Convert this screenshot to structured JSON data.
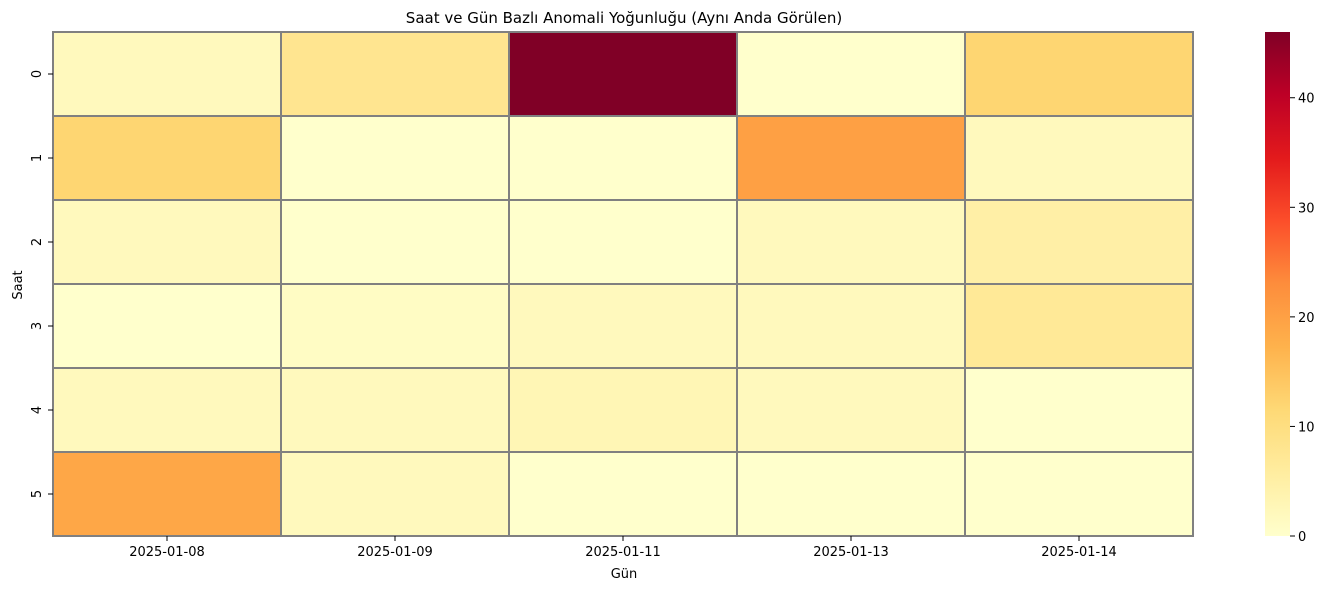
{
  "chart_data": {
    "type": "heatmap",
    "title": "Saat ve Gün Bazlı Anomali Yoğunluğu (Aynı Anda Görülen)",
    "xlabel": "Gün",
    "ylabel": "Saat",
    "x_categories": [
      "2025-01-08",
      "2025-01-09",
      "2025-01-11",
      "2025-01-13",
      "2025-01-14"
    ],
    "y_categories": [
      "0",
      "1",
      "2",
      "3",
      "4",
      "5"
    ],
    "values": [
      [
        2,
        8,
        46,
        0,
        12
      ],
      [
        12,
        0,
        0,
        20,
        2
      ],
      [
        2,
        0,
        0,
        2,
        5
      ],
      [
        0,
        1,
        2,
        2,
        7
      ],
      [
        2,
        2,
        3,
        2,
        0
      ],
      [
        19,
        2,
        0,
        0,
        0
      ]
    ],
    "colorbar": {
      "min": 0,
      "max": 46,
      "ticks": [
        0,
        10,
        20,
        30,
        40
      ]
    },
    "colormap": "YlOrRd",
    "cell_border_color": "#808080"
  }
}
